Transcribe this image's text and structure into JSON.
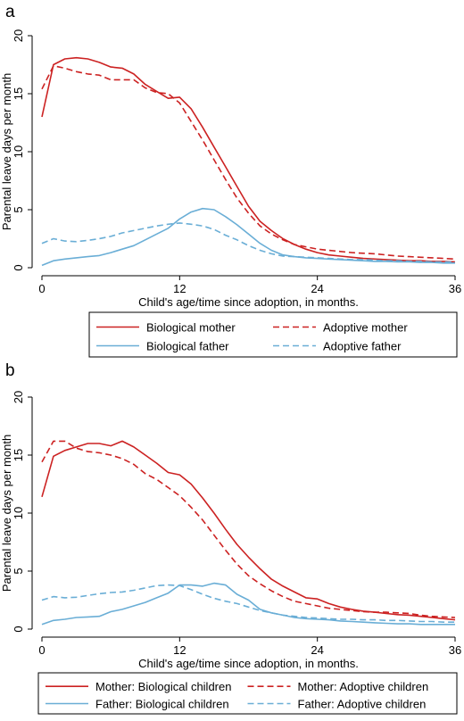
{
  "colors": {
    "red": "#cc2222",
    "blue": "#6aaed6",
    "axis": "#000000"
  },
  "chart_data": [
    {
      "type": "line",
      "panel_label": "a",
      "ylabel": "Parental leave days per month",
      "xlabel": "Child's age/time since adoption, in months.",
      "xlim": [
        0,
        36
      ],
      "ylim": [
        0,
        20
      ],
      "xticks": [
        "0",
        "12",
        "24",
        "36"
      ],
      "yticks": [
        "0",
        "5",
        "10",
        "15",
        "20"
      ],
      "grid": false,
      "legend_position": "bottom",
      "series": [
        {
          "name": "Biological mother",
          "color": "#cc2222",
          "style": "solid",
          "x": [
            0,
            1,
            2,
            3,
            4,
            5,
            6,
            7,
            8,
            9,
            10,
            11,
            12,
            13,
            14,
            15,
            16,
            17,
            18,
            19,
            20,
            21,
            22,
            23,
            24,
            25,
            26,
            27,
            28,
            29,
            30,
            31,
            32,
            33,
            34,
            35,
            36
          ],
          "y": [
            13.0,
            17.5,
            18.0,
            18.1,
            18.0,
            17.7,
            17.3,
            17.2,
            16.7,
            15.8,
            15.2,
            14.6,
            14.7,
            13.7,
            12.1,
            10.4,
            8.7,
            7.0,
            5.3,
            4.0,
            3.2,
            2.5,
            2.0,
            1.6,
            1.3,
            1.1,
            1.0,
            0.9,
            0.8,
            0.75,
            0.7,
            0.65,
            0.6,
            0.6,
            0.55,
            0.55,
            0.5
          ]
        },
        {
          "name": "Adoptive mother",
          "color": "#cc2222",
          "style": "dashed",
          "x": [
            0,
            1,
            2,
            3,
            4,
            5,
            6,
            7,
            8,
            9,
            10,
            11,
            12,
            13,
            14,
            15,
            16,
            17,
            18,
            19,
            20,
            21,
            22,
            23,
            24,
            25,
            26,
            27,
            28,
            29,
            30,
            31,
            32,
            33,
            34,
            35,
            36
          ],
          "y": [
            15.4,
            17.4,
            17.2,
            16.9,
            16.7,
            16.6,
            16.2,
            16.2,
            16.2,
            15.5,
            15.1,
            15.0,
            14.2,
            12.6,
            11.0,
            9.3,
            7.6,
            6.0,
            4.7,
            3.6,
            2.9,
            2.4,
            2.0,
            1.8,
            1.6,
            1.5,
            1.4,
            1.3,
            1.25,
            1.2,
            1.1,
            1.0,
            0.95,
            0.9,
            0.85,
            0.8,
            0.75
          ]
        },
        {
          "name": "Biological father",
          "color": "#6aaed6",
          "style": "solid",
          "x": [
            0,
            1,
            2,
            3,
            4,
            5,
            6,
            7,
            8,
            9,
            10,
            11,
            12,
            13,
            14,
            15,
            16,
            17,
            18,
            19,
            20,
            21,
            22,
            23,
            24,
            25,
            26,
            27,
            28,
            29,
            30,
            31,
            32,
            33,
            34,
            35,
            36
          ],
          "y": [
            0.2,
            0.6,
            0.75,
            0.85,
            0.95,
            1.05,
            1.3,
            1.6,
            1.9,
            2.4,
            2.9,
            3.4,
            4.2,
            4.8,
            5.1,
            5.0,
            4.4,
            3.7,
            2.9,
            2.1,
            1.5,
            1.1,
            0.95,
            0.85,
            0.8,
            0.75,
            0.7,
            0.65,
            0.6,
            0.55,
            0.55,
            0.5,
            0.5,
            0.45,
            0.45,
            0.4,
            0.4
          ]
        },
        {
          "name": "Adoptive father",
          "color": "#6aaed6",
          "style": "dashed",
          "x": [
            0,
            1,
            2,
            3,
            4,
            5,
            6,
            7,
            8,
            9,
            10,
            11,
            12,
            13,
            14,
            15,
            16,
            17,
            18,
            19,
            20,
            21,
            22,
            23,
            24,
            25,
            26,
            27,
            28,
            29,
            30,
            31,
            32,
            33,
            34,
            35,
            36
          ],
          "y": [
            2.1,
            2.5,
            2.3,
            2.25,
            2.35,
            2.5,
            2.7,
            3.0,
            3.2,
            3.4,
            3.6,
            3.75,
            3.85,
            3.75,
            3.6,
            3.3,
            2.8,
            2.4,
            1.9,
            1.5,
            1.2,
            1.0,
            0.95,
            0.9,
            0.85,
            0.8,
            0.75,
            0.7,
            0.7,
            0.65,
            0.6,
            0.6,
            0.55,
            0.55,
            0.5,
            0.5,
            0.5
          ]
        }
      ]
    },
    {
      "type": "line",
      "panel_label": "b",
      "ylabel": "Parental leave days per month",
      "xlabel": "Child's age/time since adoption, in months.",
      "xlim": [
        0,
        36
      ],
      "ylim": [
        0,
        20
      ],
      "xticks": [
        "0",
        "12",
        "24",
        "36"
      ],
      "yticks": [
        "0",
        "5",
        "10",
        "15",
        "20"
      ],
      "grid": false,
      "legend_position": "bottom",
      "series": [
        {
          "name": "Mother: Biological children",
          "color": "#cc2222",
          "style": "solid",
          "x": [
            0,
            1,
            2,
            3,
            4,
            5,
            6,
            7,
            8,
            9,
            10,
            11,
            12,
            13,
            14,
            15,
            16,
            17,
            18,
            19,
            20,
            21,
            22,
            23,
            24,
            25,
            26,
            27,
            28,
            29,
            30,
            31,
            32,
            33,
            34,
            35,
            36
          ],
          "y": [
            11.4,
            14.9,
            15.4,
            15.7,
            16.0,
            16.0,
            15.8,
            16.2,
            15.7,
            15.0,
            14.3,
            13.5,
            13.3,
            12.5,
            11.3,
            10.0,
            8.6,
            7.3,
            6.2,
            5.2,
            4.3,
            3.7,
            3.2,
            2.7,
            2.6,
            2.2,
            1.9,
            1.7,
            1.55,
            1.45,
            1.35,
            1.25,
            1.2,
            1.1,
            1.0,
            0.9,
            0.8
          ]
        },
        {
          "name": "Mother: Adoptive children",
          "color": "#cc2222",
          "style": "dashed",
          "x": [
            0,
            1,
            2,
            3,
            4,
            5,
            6,
            7,
            8,
            9,
            10,
            11,
            12,
            13,
            14,
            15,
            16,
            17,
            18,
            19,
            20,
            21,
            22,
            23,
            24,
            25,
            26,
            27,
            28,
            29,
            30,
            31,
            32,
            33,
            34,
            35,
            36
          ],
          "y": [
            14.4,
            16.2,
            16.2,
            15.6,
            15.3,
            15.2,
            15.0,
            14.7,
            14.2,
            13.4,
            12.9,
            12.2,
            11.5,
            10.5,
            9.4,
            8.1,
            6.8,
            5.6,
            4.6,
            3.9,
            3.3,
            2.8,
            2.4,
            2.2,
            2.0,
            1.8,
            1.7,
            1.6,
            1.5,
            1.45,
            1.45,
            1.4,
            1.35,
            1.2,
            1.1,
            1.05,
            1.0
          ]
        },
        {
          "name": "Father: Biological children",
          "color": "#6aaed6",
          "style": "solid",
          "x": [
            0,
            1,
            2,
            3,
            4,
            5,
            6,
            7,
            8,
            9,
            10,
            11,
            12,
            13,
            14,
            15,
            16,
            17,
            18,
            19,
            20,
            21,
            22,
            23,
            24,
            25,
            26,
            27,
            28,
            29,
            30,
            31,
            32,
            33,
            34,
            35,
            36
          ],
          "y": [
            0.4,
            0.75,
            0.85,
            1.0,
            1.05,
            1.1,
            1.5,
            1.7,
            2.0,
            2.3,
            2.7,
            3.1,
            3.8,
            3.8,
            3.7,
            3.95,
            3.8,
            3.0,
            2.5,
            1.7,
            1.4,
            1.2,
            1.0,
            0.9,
            0.85,
            0.8,
            0.7,
            0.65,
            0.6,
            0.55,
            0.5,
            0.45,
            0.45,
            0.4,
            0.4,
            0.4,
            0.4
          ]
        },
        {
          "name": "Father: Adoptive children",
          "color": "#6aaed6",
          "style": "dashed",
          "x": [
            0,
            1,
            2,
            3,
            4,
            5,
            6,
            7,
            8,
            9,
            10,
            11,
            12,
            13,
            14,
            15,
            16,
            17,
            18,
            19,
            20,
            21,
            22,
            23,
            24,
            25,
            26,
            27,
            28,
            29,
            30,
            31,
            32,
            33,
            34,
            35,
            36
          ],
          "y": [
            2.5,
            2.8,
            2.7,
            2.75,
            2.9,
            3.05,
            3.15,
            3.2,
            3.35,
            3.55,
            3.75,
            3.8,
            3.75,
            3.4,
            3.0,
            2.65,
            2.4,
            2.2,
            1.9,
            1.6,
            1.4,
            1.2,
            1.1,
            1.0,
            0.95,
            0.9,
            0.85,
            0.85,
            0.8,
            0.8,
            0.75,
            0.75,
            0.7,
            0.65,
            0.65,
            0.6,
            0.6
          ]
        }
      ]
    }
  ]
}
